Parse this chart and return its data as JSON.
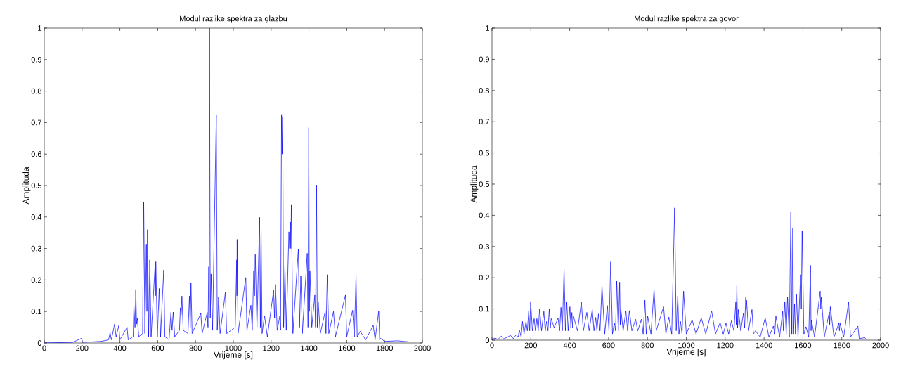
{
  "chart_data": [
    {
      "type": "line",
      "title": "Modul razlike spektra za glazbu",
      "xlabel": "Vrijeme [s]",
      "ylabel": "Amplituda",
      "color": "#0000ff",
      "xlim": [
        0,
        2000
      ],
      "ylim": [
        0,
        1
      ],
      "xticks": [
        0,
        200,
        400,
        600,
        800,
        1000,
        1200,
        1400,
        1600,
        1800,
        2000
      ],
      "yticks": [
        0,
        0.1,
        0.2,
        0.3,
        0.4,
        0.5,
        0.6,
        0.7,
        0.8,
        0.9,
        1
      ],
      "x": [
        0,
        150,
        198,
        202,
        300,
        340,
        348,
        355,
        372,
        380,
        394,
        400,
        438,
        444,
        470,
        474,
        480,
        484,
        488,
        492,
        500,
        520,
        526,
        532,
        540,
        543,
        546,
        552,
        558,
        565,
        586,
        588,
        590,
        598,
        608,
        615,
        632,
        638,
        660,
        670,
        676,
        682,
        690,
        715,
        720,
        724,
        728,
        735,
        760,
        768,
        772,
        776,
        782,
        828,
        835,
        862,
        866,
        870,
        872,
        874,
        878,
        882,
        890,
        910,
        915,
        922,
        930,
        958,
        965,
        1010,
        1018,
        1019,
        1020,
        1025,
        1066,
        1072,
        1093,
        1100,
        1108,
        1112,
        1116,
        1125,
        1139,
        1143,
        1147,
        1152,
        1165,
        1180,
        1213,
        1218,
        1223,
        1232,
        1246,
        1250,
        1255,
        1258,
        1261,
        1266,
        1273,
        1280,
        1294,
        1298,
        1302,
        1304,
        1307,
        1315,
        1344,
        1350,
        1357,
        1365,
        1391,
        1395,
        1399,
        1402,
        1405,
        1415,
        1431,
        1435,
        1440,
        1444,
        1449,
        1460,
        1486,
        1490,
        1497,
        1505,
        1530,
        1540,
        1593,
        1600,
        1631,
        1640,
        1649,
        1655,
        1671,
        1700,
        1740,
        1750,
        1769,
        1774,
        1779,
        1800,
        1869,
        1900,
        1922
      ],
      "values": [
        0,
        0.002,
        0.015,
        0.002,
        0.005,
        0.01,
        0.033,
        0.01,
        0.06,
        0.02,
        0.055,
        0.01,
        0.05,
        0.01,
        0.02,
        0.12,
        0.05,
        0.17,
        0.06,
        0.08,
        0.02,
        0.03,
        0.448,
        0.03,
        0.314,
        0.1,
        0.36,
        0.02,
        0.264,
        0.02,
        0.245,
        0.15,
        0.258,
        0.02,
        0.173,
        0.02,
        0.232,
        0.02,
        0.01,
        0.097,
        0.04,
        0.098,
        0.02,
        0.04,
        0.112,
        0.09,
        0.149,
        0.04,
        0.03,
        0.149,
        0.05,
        0.19,
        0.03,
        0.094,
        0.03,
        0.097,
        0.05,
        0.242,
        0.1,
        1.0,
        0.08,
        0.219,
        0.04,
        0.725,
        0.04,
        0.146,
        0.03,
        0.161,
        0.03,
        0.05,
        0.264,
        0.15,
        0.329,
        0.03,
        0.208,
        0.04,
        0.12,
        0.04,
        0.23,
        0.15,
        0.281,
        0.05,
        0.399,
        0.05,
        0.355,
        0.03,
        0.087,
        0.02,
        0.167,
        0.08,
        0.186,
        0.04,
        0.086,
        0.04,
        0.726,
        0.6,
        0.719,
        0.05,
        0.243,
        0.04,
        0.353,
        0.3,
        0.384,
        0.3,
        0.44,
        0.03,
        0.299,
        0.05,
        0.212,
        0.03,
        0.285,
        0.05,
        0.684,
        0.1,
        0.23,
        0.05,
        0.152,
        0.05,
        0.502,
        0.05,
        0.13,
        0.03,
        0.1,
        0.03,
        0.217,
        0.03,
        0.1,
        0.02,
        0.152,
        0.02,
        0.104,
        0.02,
        0.213,
        0.02,
        0.037,
        0.01,
        0.056,
        0.01,
        0.102,
        0.01,
        0.015,
        0.005,
        0.007,
        0.005,
        0.004
      ]
    },
    {
      "type": "line",
      "title": "Modul razlike spektra za govor",
      "xlabel": "Vrijeme [s]",
      "ylabel": "Amplituda",
      "color": "#0000ff",
      "xlim": [
        0,
        2000
      ],
      "ylim": [
        0,
        1
      ],
      "xticks": [
        0,
        200,
        400,
        600,
        800,
        1000,
        1200,
        1400,
        1600,
        1800,
        2000
      ],
      "yticks": [
        0,
        0.1,
        0.2,
        0.3,
        0.4,
        0.5,
        0.6,
        0.7,
        0.8,
        0.9,
        1
      ],
      "x": [
        0,
        16,
        30,
        48,
        60,
        96,
        110,
        124,
        135,
        141,
        150,
        157,
        165,
        175,
        182,
        189,
        194,
        199,
        208,
        217,
        224,
        231,
        238,
        245,
        255,
        267,
        274,
        281,
        288,
        295,
        300,
        305,
        320,
        340,
        348,
        355,
        362,
        371,
        378,
        385,
        392,
        401,
        406,
        411,
        415,
        419,
        440,
        460,
        470,
        488,
        500,
        516,
        525,
        534,
        540,
        548,
        556,
        566,
        580,
        594,
        602,
        611,
        620,
        630,
        636,
        642,
        650,
        657,
        660,
        663,
        675,
        689,
        698,
        707,
        720,
        739,
        750,
        769,
        778,
        787,
        794,
        801,
        818,
        834,
        845,
        883,
        895,
        910,
        925,
        940,
        948,
        956,
        962,
        970,
        978,
        986,
        1000,
        1030,
        1050,
        1077,
        1100,
        1130,
        1150,
        1174,
        1190,
        1204,
        1218,
        1232,
        1245,
        1255,
        1257,
        1260,
        1264,
        1268,
        1280,
        1294,
        1300,
        1306,
        1308,
        1310,
        1320,
        1338,
        1345,
        1356,
        1380,
        1406,
        1425,
        1448,
        1455,
        1461,
        1480,
        1496,
        1500,
        1507,
        1514,
        1521,
        1530,
        1538,
        1543,
        1548,
        1552,
        1557,
        1562,
        1567,
        1575,
        1588,
        1592,
        1596,
        1605,
        1616,
        1630,
        1639,
        1642,
        1644,
        1660,
        1689,
        1692,
        1695,
        1710,
        1736,
        1738,
        1741,
        1760,
        1785,
        1788,
        1791,
        1810,
        1835,
        1845,
        1883,
        1890,
        1919,
        1925
      ],
      "values": [
        0.002,
        0.007,
        0.002,
        0.013,
        0.004,
        0.015,
        0.005,
        0.017,
        0.01,
        0.033,
        0.01,
        0.06,
        0.02,
        0.06,
        0.03,
        0.094,
        0.03,
        0.124,
        0.03,
        0.069,
        0.03,
        0.069,
        0.03,
        0.1,
        0.03,
        0.092,
        0.03,
        0.06,
        0.03,
        0.1,
        0.04,
        0.069,
        0.04,
        0.071,
        0.03,
        0.105,
        0.03,
        0.227,
        0.03,
        0.122,
        0.03,
        0.107,
        0.04,
        0.089,
        0.04,
        0.077,
        0.03,
        0.122,
        0.03,
        0.089,
        0.03,
        0.098,
        0.03,
        0.073,
        0.03,
        0.084,
        0.03,
        0.174,
        0.02,
        0.111,
        0.03,
        0.251,
        0.02,
        0.056,
        0.03,
        0.189,
        0.03,
        0.186,
        0.05,
        0.1,
        0.03,
        0.094,
        0.03,
        0.095,
        0.03,
        0.067,
        0.03,
        0.067,
        0.02,
        0.128,
        0.02,
        0.077,
        0.02,
        0.163,
        0.03,
        0.107,
        0.02,
        0.074,
        0.02,
        0.424,
        0.03,
        0.142,
        0.02,
        0.06,
        0.02,
        0.157,
        0.02,
        0.065,
        0.02,
        0.071,
        0.02,
        0.094,
        0.02,
        0.056,
        0.02,
        0.054,
        0.02,
        0.062,
        0.03,
        0.124,
        0.05,
        0.174,
        0.04,
        0.098,
        0.03,
        0.086,
        0.04,
        0.137,
        0.1,
        0.128,
        0.03,
        0.098,
        0.02,
        0.03,
        0.01,
        0.071,
        0.01,
        0.045,
        0.02,
        0.077,
        0.01,
        0.092,
        0.03,
        0.124,
        0.02,
        0.139,
        0.01,
        0.411,
        0.02,
        0.36,
        0.02,
        0.116,
        0.02,
        0.146,
        0.01,
        0.21,
        0.1,
        0.351,
        0.02,
        0.043,
        0.01,
        0.24,
        0.03,
        0.064,
        0.01,
        0.157,
        0.1,
        0.139,
        0.01,
        0.09,
        0.05,
        0.107,
        0.01,
        0.054,
        0.03,
        0.054,
        0.01,
        0.122,
        0.01,
        0.045,
        0.005,
        0.008,
        0.002
      ]
    }
  ]
}
